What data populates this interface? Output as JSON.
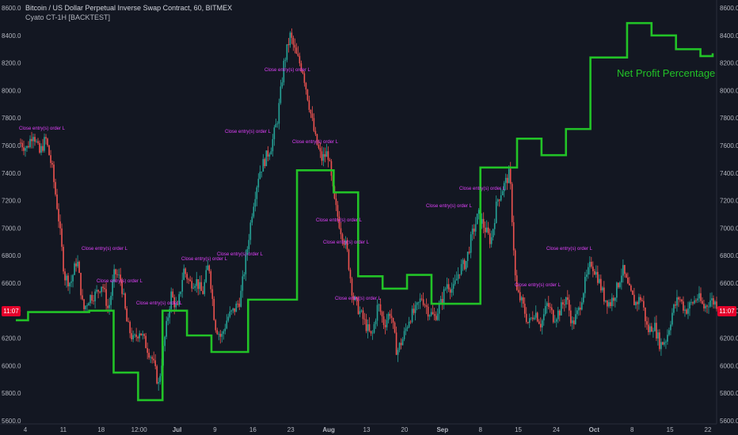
{
  "header": {
    "title": "Bitcoin / US Dollar Perpetual Inverse Swap Contract, 60, BITMEX",
    "study": "Cyato CT-1H [BACKTEST]"
  },
  "price_badge": {
    "left": "11:07",
    "right": "11:07"
  },
  "colors": {
    "bg": "#131722",
    "up": "#26a69a",
    "down": "#ef5350",
    "equity": "#22c327",
    "annotation": "#e040fb",
    "badge": "#e5002b"
  },
  "chart_data": [
    {
      "type": "candlestick",
      "xticks": [
        "4",
        "11",
        "18",
        "12:00",
        "Jul",
        "9",
        "16",
        "23",
        "Aug",
        "13",
        "20",
        "Sep",
        "8",
        "15",
        "24",
        "Oct",
        "8",
        "15",
        "22"
      ],
      "yticks_left": [
        "8600.0",
        "8400.0",
        "8200.0",
        "8000.0",
        "7800.0",
        "7600.0",
        "7400.0",
        "7200.0",
        "7000.0",
        "6800.0",
        "6600.0",
        "6400.0",
        "6200.0",
        "6000.0",
        "5800.0",
        "5600.0"
      ],
      "yticks_right": [
        "8600.0",
        "8400.0",
        "8200.0",
        "8000.0",
        "7800.0",
        "7600.0",
        "7400.0",
        "7200.0",
        "7000.0",
        "6800.0",
        "6600.0",
        "6400.0",
        "6200.0",
        "6000.0",
        "5800.0",
        "5600.0"
      ],
      "ylim": [
        5600,
        8600
      ],
      "close_path": [
        7620,
        7580,
        7700,
        7540,
        7650,
        7440,
        7100,
        6650,
        6600,
        6780,
        6400,
        6500,
        6520,
        6600,
        6400,
        6680,
        6620,
        6300,
        6180,
        6260,
        6150,
        6050,
        5860,
        6200,
        6520,
        6400,
        6700,
        6600,
        6620,
        6520,
        6750,
        6300,
        6200,
        6350,
        6400,
        6480,
        6800,
        7150,
        7400,
        7500,
        7600,
        7800,
        8200,
        8400,
        8250,
        8150,
        7900,
        7650,
        7500,
        7550,
        7200,
        7000,
        6850,
        6500,
        6400,
        6300,
        6200,
        6450,
        6300,
        6400,
        6100,
        6200,
        6350,
        6400,
        6500,
        6400,
        6350,
        6450,
        6600,
        6550,
        6700,
        6750,
        6950,
        7100,
        7000,
        6900,
        7200,
        7300,
        7400,
        6550,
        6450,
        6300,
        6400,
        6300,
        6450,
        6350,
        6400,
        6500,
        6300,
        6400,
        6600,
        6750,
        6650,
        6500,
        6450,
        6550,
        6700,
        6550,
        6450,
        6500,
        6250,
        6300,
        6150,
        6200,
        6400,
        6500,
        6400,
        6450,
        6500,
        6420,
        6480,
        6450
      ],
      "annotations": [
        "Close entry(s) order L",
        "Close entry(s) order L",
        "Close entry(s) order L",
        "Close entry(s) order L",
        "Close entry(s) order L",
        "Close entry(s) order L",
        "Close entry(s) order L",
        "Close entry(s) order L",
        "Close entry(s) order L",
        "Close entry(s) order L",
        "Close entry(s) order L",
        "Close entry(s) order L",
        "Close entry(s) order L",
        "Close entry(s) order L",
        "Close entry(s) order L",
        "Close entry(s) order L"
      ]
    },
    {
      "type": "line",
      "series": [
        {
          "name": "Net Profit Percentage",
          "values": [
            6330,
            6390,
            6390,
            6390,
            6390,
            6390,
            6400,
            6400,
            5950,
            5950,
            5750,
            5750,
            6400,
            6400,
            6220,
            6220,
            6100,
            6100,
            6100,
            6480,
            6480,
            6480,
            6480,
            7420,
            7420,
            7420,
            7260,
            7260,
            6650,
            6650,
            6560,
            6560,
            6660,
            6660,
            6450,
            6450,
            6450,
            6450,
            7440,
            7440,
            7440,
            7650,
            7650,
            7530,
            7530,
            7720,
            7720,
            8240,
            8240,
            8240,
            8490,
            8490,
            8400,
            8400,
            8300,
            8300,
            8250,
            8270
          ]
        }
      ]
    }
  ]
}
